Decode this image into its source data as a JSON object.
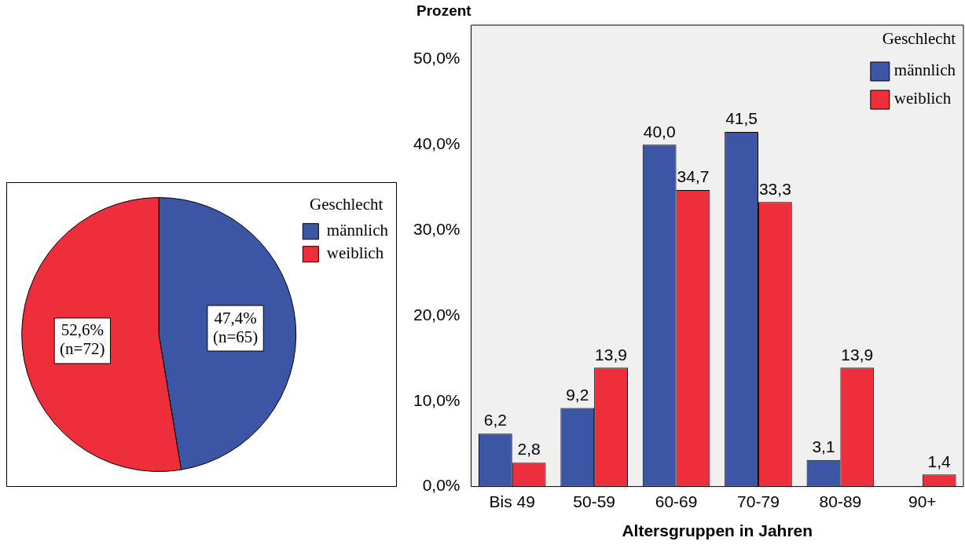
{
  "chart_data": [
    {
      "type": "pie",
      "categories": [
        "männlich",
        "weiblich"
      ],
      "values": [
        47.4,
        52.6
      ],
      "colors": [
        "#3c55a5",
        "#ee2e3a"
      ],
      "value_labels": [
        "47,4%\n(n=65)",
        "52,6%\n(n=72)"
      ],
      "legend": "right",
      "legend_title": "Geschlecht"
    },
    {
      "type": "bar",
      "categories": [
        "Bis 49",
        "50-59",
        "60-69",
        "70-79",
        "80-89",
        "90+"
      ],
      "series": [
        {
          "name": "männlich",
          "color": "#3c55a5",
          "values": [
            6.2,
            9.2,
            40.0,
            41.5,
            3.1,
            null
          ],
          "value_labels": [
            "6,2",
            "9,2",
            "40,0",
            "41,5",
            "3,1",
            null
          ]
        },
        {
          "name": "weiblich",
          "color": "#ee2e3a",
          "values": [
            2.8,
            13.9,
            34.7,
            33.3,
            13.9,
            1.4
          ],
          "value_labels": [
            "2,8",
            "13,9",
            "34,7",
            "33,3",
            "13,9",
            "1,4"
          ]
        }
      ],
      "ylim": [
        0,
        54
      ],
      "yticks": [
        {
          "value": 0,
          "label": "0,0%"
        },
        {
          "value": 10,
          "label": "10,0%"
        },
        {
          "value": 20,
          "label": "20,0%"
        },
        {
          "value": 30,
          "label": "30,0%"
        },
        {
          "value": 40,
          "label": "40,0%"
        },
        {
          "value": 50,
          "label": "50,0%"
        }
      ],
      "ylabel": "Prozent",
      "xlabel": "Altersgruppen in Jahren",
      "legend": "top right",
      "legend_title": "Geschlecht",
      "grid": false
    }
  ]
}
